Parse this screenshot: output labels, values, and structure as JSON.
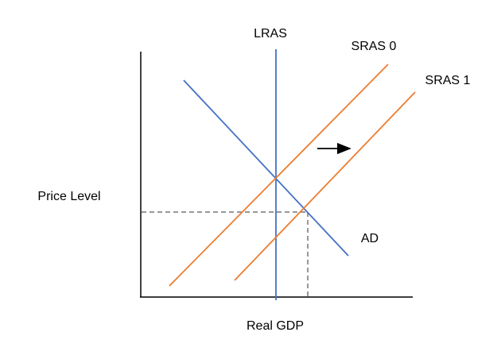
{
  "diagram": {
    "y_axis_label": "Price Level",
    "x_axis_label": "Real GDP",
    "lras_label": "LRAS",
    "sras0_label": "SRAS 0",
    "sras1_label": "SRAS 1",
    "ad_label": "AD"
  }
}
